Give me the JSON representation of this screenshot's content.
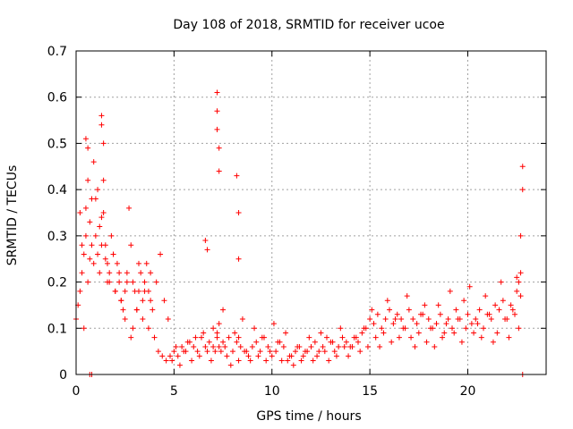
{
  "chart_data": {
    "type": "scatter",
    "title": "Day 108 of 2018, SRMTID for receiver ucoe",
    "xlabel": "GPS time / hours",
    "ylabel": "SRMTID / TECUs",
    "xlim": [
      0,
      24
    ],
    "ylim": [
      0,
      0.7
    ],
    "xticks": [
      0,
      5,
      10,
      15,
      20
    ],
    "yticks": [
      0,
      0.1,
      0.2,
      0.3,
      0.4,
      0.5,
      0.6,
      0.7
    ],
    "xtick_labels": [
      "0",
      "5",
      "10",
      "15",
      "20"
    ],
    "ytick_labels": [
      "0",
      "0.1",
      "0.2",
      "0.3",
      "0.4",
      "0.5",
      "0.6",
      "0.7"
    ],
    "grid": true,
    "marker": "+",
    "color": "#ff0000",
    "series": [
      {
        "name": "SRMTID",
        "x": [
          0.0,
          0.1,
          0.2,
          0.3,
          0.4,
          0.5,
          0.5,
          0.6,
          0.7,
          0.8,
          0.9,
          1.0,
          1.0,
          1.1,
          1.2,
          1.3,
          1.4,
          1.4,
          1.5,
          1.6,
          1.7,
          1.8,
          1.9,
          2.0,
          2.1,
          2.2,
          2.3,
          2.4,
          2.5,
          2.6,
          2.7,
          2.8,
          2.9,
          3.0,
          3.1,
          3.2,
          3.3,
          3.4,
          3.5,
          3.6,
          3.7,
          3.8,
          3.9,
          4.0,
          4.2,
          4.4,
          4.6,
          4.8,
          5.0,
          5.2,
          5.4,
          5.6,
          5.8,
          6.0,
          6.2,
          6.4,
          6.6,
          6.8,
          7.0,
          7.1,
          7.2,
          7.3,
          7.4,
          7.5,
          7.6,
          7.8,
          8.0,
          8.2,
          8.3,
          8.4,
          8.6,
          8.8,
          9.0,
          9.2,
          9.4,
          9.6,
          9.8,
          10.0,
          10.2,
          10.4,
          10.6,
          10.8,
          11.0,
          11.2,
          11.4,
          11.6,
          11.8,
          12.0,
          12.2,
          12.4,
          12.6,
          12.8,
          13.0,
          13.2,
          13.4,
          13.6,
          13.8,
          14.0,
          14.2,
          14.4,
          14.6,
          14.8,
          15.0,
          15.2,
          15.4,
          15.6,
          15.8,
          16.0,
          16.2,
          16.4,
          16.6,
          16.8,
          17.0,
          17.2,
          17.4,
          17.6,
          17.8,
          18.0,
          18.2,
          18.4,
          18.6,
          18.8,
          19.0,
          19.2,
          19.4,
          19.6,
          19.8,
          20.0,
          20.2,
          20.4,
          20.6,
          20.8,
          21.0,
          21.2,
          21.4,
          21.6,
          21.8,
          22.0,
          22.2,
          22.4,
          22.5,
          22.6,
          22.7,
          22.7,
          22.8,
          22.8,
          0.2,
          0.3,
          0.4,
          0.6,
          0.7,
          0.8,
          0.9,
          1.1,
          1.2,
          1.3,
          1.5,
          1.6,
          1.7,
          1.9,
          2.0,
          2.2,
          2.3,
          2.5,
          2.6,
          2.8,
          2.9,
          3.1,
          3.2,
          3.4,
          3.5,
          3.7,
          3.8,
          4.1,
          4.3,
          4.5,
          4.7,
          4.9,
          5.1,
          5.3,
          5.5,
          5.7,
          5.9,
          6.1,
          6.3,
          6.5,
          6.7,
          6.9,
          7.0,
          7.2,
          7.3,
          7.5,
          7.7,
          7.9,
          8.1,
          8.3,
          8.5,
          8.7,
          8.9,
          9.1,
          9.3,
          9.5,
          9.7,
          9.9,
          10.1,
          10.3,
          10.5,
          10.7,
          10.9,
          11.1,
          11.3,
          11.5,
          11.7,
          11.9,
          12.1,
          12.3,
          12.5,
          12.7,
          12.9,
          13.1,
          13.3,
          13.5,
          13.7,
          13.9,
          14.1,
          14.3,
          14.5,
          14.7,
          14.9,
          15.1,
          15.3,
          15.5,
          15.7,
          15.9,
          16.1,
          16.3,
          16.5,
          16.7,
          16.9,
          17.1,
          17.3,
          17.5,
          17.7,
          17.9,
          18.1,
          18.3,
          18.5,
          18.7,
          18.9,
          19.1,
          19.3,
          19.5,
          19.7,
          19.9,
          20.1,
          20.3,
          20.5,
          20.7,
          20.9,
          21.1,
          21.3,
          21.5,
          21.7,
          21.9,
          22.1,
          22.3,
          22.5,
          22.6,
          22.7,
          1.3,
          1.3,
          1.4,
          7.2,
          7.2,
          7.2,
          7.3,
          7.3,
          8.2,
          8.3,
          8.3,
          6.6,
          6.7,
          0.5,
          0.6
        ],
        "y": [
          0.12,
          0.15,
          0.18,
          0.22,
          0.26,
          0.3,
          0.36,
          0.42,
          0.33,
          0.28,
          0.24,
          0.38,
          0.3,
          0.26,
          0.22,
          0.28,
          0.35,
          0.42,
          0.25,
          0.2,
          0.22,
          0.3,
          0.26,
          0.18,
          0.24,
          0.2,
          0.16,
          0.14,
          0.18,
          0.22,
          0.36,
          0.28,
          0.2,
          0.18,
          0.14,
          0.18,
          0.22,
          0.16,
          0.2,
          0.24,
          0.18,
          0.22,
          0.14,
          0.08,
          0.05,
          0.04,
          0.03,
          0.04,
          0.05,
          0.04,
          0.06,
          0.05,
          0.07,
          0.06,
          0.05,
          0.08,
          0.06,
          0.07,
          0.1,
          0.05,
          0.08,
          0.06,
          0.05,
          0.07,
          0.06,
          0.08,
          0.05,
          0.07,
          0.08,
          0.06,
          0.05,
          0.04,
          0.06,
          0.07,
          0.05,
          0.08,
          0.06,
          0.04,
          0.05,
          0.07,
          0.06,
          0.03,
          0.04,
          0.05,
          0.06,
          0.04,
          0.05,
          0.06,
          0.07,
          0.05,
          0.06,
          0.08,
          0.07,
          0.05,
          0.06,
          0.08,
          0.07,
          0.06,
          0.08,
          0.07,
          0.09,
          0.1,
          0.12,
          0.11,
          0.13,
          0.1,
          0.12,
          0.14,
          0.11,
          0.13,
          0.12,
          0.1,
          0.14,
          0.12,
          0.11,
          0.13,
          0.15,
          0.12,
          0.1,
          0.11,
          0.13,
          0.09,
          0.12,
          0.1,
          0.14,
          0.12,
          0.16,
          0.13,
          0.11,
          0.12,
          0.14,
          0.1,
          0.13,
          0.12,
          0.15,
          0.14,
          0.16,
          0.12,
          0.15,
          0.13,
          0.18,
          0.2,
          0.22,
          0.3,
          0.4,
          0.45,
          0.35,
          0.28,
          0.1,
          0.2,
          0.25,
          0.38,
          0.46,
          0.4,
          0.32,
          0.34,
          0.28,
          0.24,
          0.2,
          0.26,
          0.18,
          0.22,
          0.16,
          0.12,
          0.2,
          0.08,
          0.1,
          0.14,
          0.24,
          0.12,
          0.18,
          0.1,
          0.16,
          0.2,
          0.26,
          0.16,
          0.12,
          0.03,
          0.06,
          0.02,
          0.05,
          0.07,
          0.03,
          0.08,
          0.04,
          0.09,
          0.05,
          0.03,
          0.06,
          0.09,
          0.11,
          0.14,
          0.04,
          0.02,
          0.09,
          0.03,
          0.12,
          0.05,
          0.03,
          0.1,
          0.04,
          0.08,
          0.03,
          0.05,
          0.11,
          0.07,
          0.03,
          0.09,
          0.04,
          0.02,
          0.06,
          0.03,
          0.05,
          0.08,
          0.03,
          0.04,
          0.09,
          0.05,
          0.03,
          0.07,
          0.04,
          0.1,
          0.06,
          0.04,
          0.06,
          0.08,
          0.05,
          0.1,
          0.06,
          0.14,
          0.08,
          0.06,
          0.09,
          0.16,
          0.07,
          0.12,
          0.08,
          0.1,
          0.17,
          0.08,
          0.06,
          0.09,
          0.13,
          0.07,
          0.1,
          0.06,
          0.15,
          0.08,
          0.11,
          0.18,
          0.09,
          0.12,
          0.07,
          0.1,
          0.19,
          0.09,
          0.11,
          0.08,
          0.17,
          0.13,
          0.07,
          0.09,
          0.2,
          0.12,
          0.08,
          0.14,
          0.21,
          0.1,
          0.17,
          0.56,
          0.54,
          0.5,
          0.61,
          0.57,
          0.53,
          0.49,
          0.44,
          0.43,
          0.35,
          0.25,
          0.29,
          0.27,
          0.51,
          0.49
        ]
      }
    ],
    "extra_markers": [
      {
        "x": 0.7,
        "y": 0.0
      },
      {
        "x": 0.8,
        "y": 0.0
      },
      {
        "x": 22.8,
        "y": 0.0
      }
    ]
  }
}
